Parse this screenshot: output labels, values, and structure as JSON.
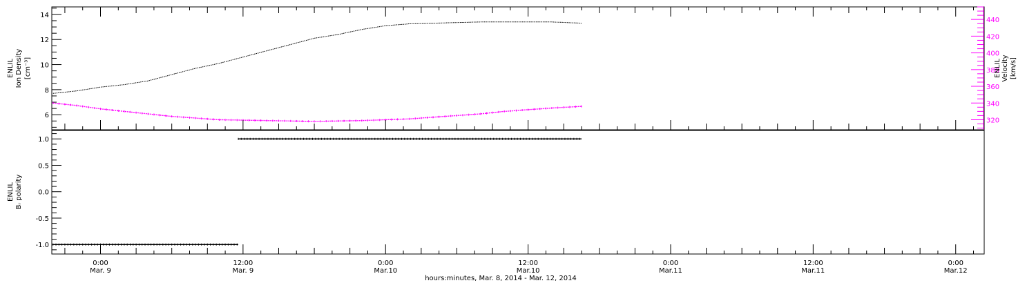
{
  "x_axis": {
    "title": "hours:minutes, Mar.  8, 2014 - Mar. 12, 2014",
    "ticks": [
      {
        "t": 0,
        "top": "0:00",
        "bottom": "Mar. 9"
      },
      {
        "t": 12,
        "top": "12:00",
        "bottom": "Mar. 9"
      },
      {
        "t": 24,
        "top": "0:00",
        "bottom": "Mar.10"
      },
      {
        "t": 36,
        "top": "12:00",
        "bottom": "Mar.10"
      },
      {
        "t": 48,
        "top": "0:00",
        "bottom": "Mar.11"
      },
      {
        "t": 60,
        "top": "12:00",
        "bottom": "Mar.11"
      },
      {
        "t": 72,
        "top": "0:00",
        "bottom": "Mar.12"
      }
    ]
  },
  "chart_data": [
    {
      "type": "line",
      "panel": "top",
      "xlim_hours_since_mar9": [
        -4.1,
        74.4
      ],
      "ylabel_left": [
        "ENLIL",
        "Ion Density",
        "[cm⁻³]"
      ],
      "ylabel_right": [
        "ENLIL",
        "Velocity",
        "[km/s]"
      ],
      "ylim_left": [
        4.8,
        14.6
      ],
      "ylim_right": [
        308,
        455
      ],
      "yticks_left": [
        "6",
        "8",
        "10",
        "12",
        "14"
      ],
      "yticks_right": [
        "320",
        "340",
        "360",
        "380",
        "400",
        "420",
        "440"
      ],
      "series": [
        {
          "axis": "left",
          "color": "#000000",
          "x": [
            -4,
            -2,
            0,
            2,
            4,
            6,
            8,
            10,
            12,
            14,
            16,
            18,
            20,
            22,
            24,
            26,
            28,
            30,
            32,
            34,
            36,
            38,
            40.5
          ],
          "y": [
            7.7,
            7.9,
            8.2,
            8.4,
            8.7,
            9.2,
            9.7,
            10.1,
            10.6,
            11.1,
            11.6,
            12.1,
            12.4,
            12.8,
            13.1,
            13.25,
            13.3,
            13.35,
            13.4,
            13.4,
            13.4,
            13.4,
            13.3
          ]
        },
        {
          "axis": "right",
          "color": "#ff00ff",
          "x": [
            -4,
            -2,
            0,
            2,
            4,
            6,
            8,
            10,
            12,
            14,
            16,
            18,
            20,
            22,
            24,
            26,
            28,
            30,
            32,
            34,
            36,
            38,
            40.5
          ],
          "y": [
            340,
            337,
            333,
            330,
            327,
            324,
            322,
            320,
            319.5,
            319,
            318.5,
            318,
            318.5,
            319,
            320,
            321,
            323,
            325,
            327,
            330,
            332,
            334,
            336
          ]
        }
      ]
    },
    {
      "type": "scatter",
      "panel": "bottom",
      "xlim_hours_since_mar9": [
        -4.1,
        74.4
      ],
      "ylabel_left": [
        "ENLIL",
        "Bᵣ polarity"
      ],
      "ylim": [
        -1.18,
        1.16
      ],
      "yticks": [
        "-1.0",
        "-0.5",
        "0.0",
        "0.5",
        "1.0"
      ],
      "series": [
        {
          "color": "#000000",
          "x": [
            -4,
            11.6
          ],
          "y": [
            -1,
            -1
          ]
        },
        {
          "color": "#000000",
          "x": [
            11.6,
            40.5
          ],
          "y": [
            1,
            1
          ]
        }
      ]
    }
  ]
}
